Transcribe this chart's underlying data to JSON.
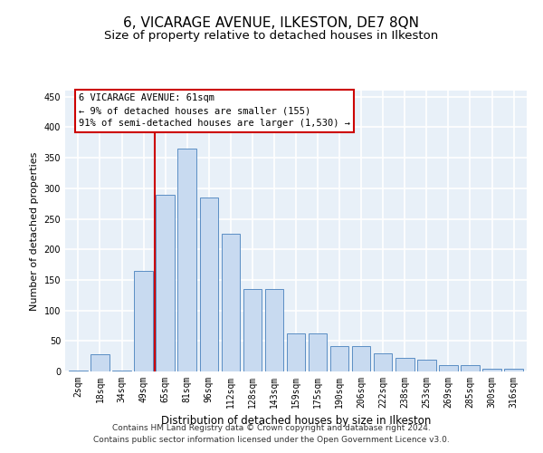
{
  "title1": "6, VICARAGE AVENUE, ILKESTON, DE7 8QN",
  "title2": "Size of property relative to detached houses in Ilkeston",
  "xlabel": "Distribution of detached houses by size in Ilkeston",
  "ylabel": "Number of detached properties",
  "categories": [
    "2sqm",
    "18sqm",
    "34sqm",
    "49sqm",
    "65sqm",
    "81sqm",
    "96sqm",
    "112sqm",
    "128sqm",
    "143sqm",
    "159sqm",
    "175sqm",
    "190sqm",
    "206sqm",
    "222sqm",
    "238sqm",
    "253sqm",
    "269sqm",
    "285sqm",
    "300sqm",
    "316sqm"
  ],
  "values": [
    2,
    28,
    2,
    165,
    290,
    365,
    285,
    225,
    135,
    135,
    62,
    62,
    42,
    42,
    30,
    22,
    20,
    10,
    10,
    5,
    4
  ],
  "bar_color": "#c8daf0",
  "bar_edge_color": "#5b8ec4",
  "annotation_text": "6 VICARAGE AVENUE: 61sqm\n← 9% of detached houses are smaller (155)\n91% of semi-detached houses are larger (1,530) →",
  "annotation_box_color": "white",
  "annotation_box_edge_color": "#cc0000",
  "vline_index": 4,
  "ylim": [
    0,
    460
  ],
  "yticks": [
    0,
    50,
    100,
    150,
    200,
    250,
    300,
    350,
    400,
    450
  ],
  "footer1": "Contains HM Land Registry data © Crown copyright and database right 2024.",
  "footer2": "Contains public sector information licensed under the Open Government Licence v3.0.",
  "bg_color": "#e8f0f8",
  "grid_color": "white",
  "title1_fontsize": 11,
  "title2_fontsize": 9.5,
  "xlabel_fontsize": 8.5,
  "ylabel_fontsize": 8,
  "tick_fontsize": 7,
  "footer_fontsize": 6.5,
  "ann_fontsize": 7.5
}
